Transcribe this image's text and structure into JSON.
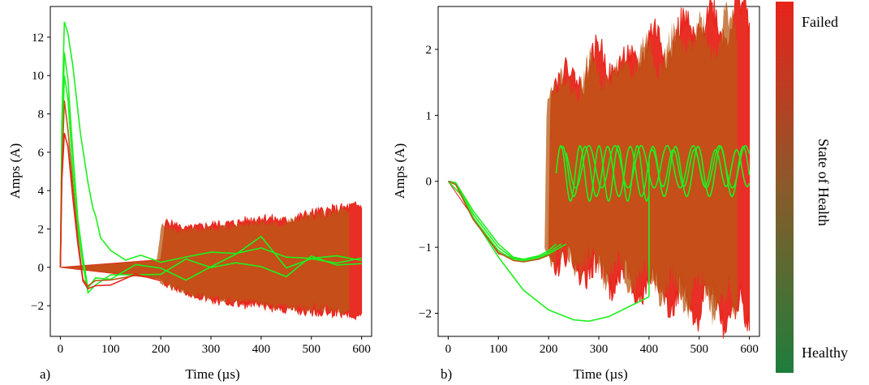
{
  "figure": {
    "colorbar": {
      "title": "State of Health",
      "top_label": "Failed",
      "bottom_label": "Healthy",
      "colors": {
        "failed": "#e8231a",
        "healthy": "#1e7d3c"
      }
    }
  },
  "chart_data": [
    {
      "type": "line",
      "panel_label": "a)",
      "xlabel": "Time (µs)",
      "ylabel": "Amps (A)",
      "xlim": [
        -20,
        620
      ],
      "ylim": [
        -3.6,
        13.6
      ],
      "xticks": [
        "0",
        "100",
        "200",
        "300",
        "400",
        "500",
        "600"
      ],
      "yticks": [
        "−2",
        "0",
        "2",
        "4",
        "6",
        "8",
        "10",
        "12"
      ],
      "grid": false,
      "colors": {
        "failed": "#e8231a",
        "mid": "#b85a16",
        "healthy": "#1ef01e"
      },
      "envelope": {
        "name": "failed-band",
        "x": [
          0,
          200,
          210,
          250,
          300,
          350,
          400,
          450,
          500,
          550,
          600
        ],
        "upper": [
          0,
          0.4,
          2.4,
          2.0,
          2.2,
          2.3,
          2.6,
          2.4,
          2.8,
          3.0,
          3.2
        ],
        "lower": [
          0,
          -0.6,
          -0.9,
          -1.3,
          -1.7,
          -1.9,
          -2.0,
          -2.2,
          -2.3,
          -2.3,
          -2.5
        ]
      },
      "series": [
        {
          "color": "healthy",
          "x": [
            0,
            3,
            8,
            15,
            25,
            40,
            55,
            65,
            70,
            80,
            100,
            130,
            160,
            200,
            250,
            300,
            350,
            400,
            450,
            500,
            550,
            600
          ],
          "y": [
            0,
            7.5,
            12.8,
            12.2,
            10.5,
            7.0,
            4.5,
            3.2,
            2.5,
            1.6,
            0.8,
            0.5,
            0.4,
            0.3,
            0.6,
            0.8,
            0.5,
            0.9,
            0.6,
            0.4,
            0.5,
            0.6
          ]
        },
        {
          "color": "healthy",
          "x": [
            0,
            3,
            8,
            15,
            25,
            35,
            45,
            55,
            70,
            100,
            150,
            200,
            250,
            300,
            350,
            400,
            450,
            500,
            550,
            600
          ],
          "y": [
            0,
            6.0,
            11.2,
            9.8,
            6.0,
            2.5,
            0.5,
            -0.9,
            -0.6,
            -0.4,
            -0.1,
            0.1,
            -0.6,
            0.2,
            0.8,
            1.4,
            0.2,
            0.6,
            0.4,
            0.7
          ]
        },
        {
          "color": "healthy",
          "x": [
            0,
            3,
            8,
            15,
            25,
            35,
            45,
            55,
            70,
            100,
            150,
            200,
            250,
            300,
            350,
            400,
            450,
            500,
            550,
            600
          ],
          "y": [
            0,
            5.5,
            10.0,
            8.8,
            5.0,
            2.0,
            0.0,
            -1.1,
            -0.8,
            -0.5,
            -0.3,
            -0.2,
            0.3,
            -0.2,
            0.4,
            0.1,
            -0.3,
            0.5,
            -0.1,
            0.2
          ]
        },
        {
          "color": "mid",
          "x": [
            0,
            3,
            8,
            15,
            25,
            35,
            45,
            55,
            70,
            100,
            150,
            200
          ],
          "y": [
            0,
            5.0,
            8.7,
            7.2,
            4.2,
            1.5,
            -0.4,
            -1.2,
            -0.9,
            -0.6,
            -0.5,
            -0.4
          ]
        },
        {
          "color": "failed",
          "x": [
            0,
            3,
            8,
            15,
            25,
            35,
            45,
            55,
            70,
            100,
            150,
            200
          ],
          "y": [
            0,
            4.5,
            7.0,
            6.3,
            3.6,
            1.2,
            -0.6,
            -1.3,
            -1.0,
            -0.7,
            -0.6,
            -0.5
          ]
        }
      ]
    },
    {
      "type": "line",
      "panel_label": "b)",
      "xlabel": "Time (µs)",
      "ylabel": "Amps (A)",
      "xlim": [
        -20,
        620
      ],
      "ylim": [
        -2.35,
        2.65
      ],
      "xticks": [
        "0",
        "100",
        "200",
        "300",
        "400",
        "500",
        "600"
      ],
      "yticks": [
        "−2",
        "−1",
        "0",
        "1",
        "2"
      ],
      "grid": false,
      "colors": {
        "failed": "#e8231a",
        "mid": "#b85a16",
        "healthy": "#1ef01e"
      },
      "envelope": {
        "name": "failed-band",
        "x": [
          0,
          100,
          150,
          200,
          205,
          210,
          250,
          300,
          350,
          400,
          450,
          500,
          550,
          600
        ],
        "upper": [
          0,
          -1.1,
          -1.2,
          -1.1,
          1.6,
          1.7,
          1.5,
          1.9,
          1.7,
          2.1,
          2.1,
          2.4,
          2.4,
          2.6
        ],
        "lower": [
          0,
          -1.1,
          -1.2,
          -1.1,
          -1.2,
          -1.2,
          -1.3,
          -1.4,
          -1.5,
          -1.6,
          -1.8,
          -1.8,
          -2.0,
          -2.1
        ]
      },
      "series": [
        {
          "color": "healthy",
          "x": [
            0,
            25,
            50,
            100,
            150,
            200,
            250,
            280,
            320,
            360,
            400
          ],
          "y": [
            0,
            -0.2,
            -0.55,
            -1.15,
            -1.65,
            -1.95,
            -2.1,
            -2.12,
            -2.05,
            -1.9,
            -1.75
          ]
        },
        {
          "color": "healthy",
          "x": [
            0,
            15,
            50,
            100,
            130,
            150,
            180,
            200,
            215
          ],
          "y": [
            0,
            -0.02,
            -0.45,
            -0.95,
            -1.15,
            -1.18,
            -1.13,
            -1.05,
            -0.95
          ]
        },
        {
          "color": "healthy",
          "x": [
            0,
            15,
            50,
            100,
            130,
            150,
            180,
            200,
            225
          ],
          "y": [
            0,
            -0.03,
            -0.5,
            -1.0,
            -1.17,
            -1.2,
            -1.15,
            -1.08,
            -0.95
          ]
        },
        {
          "color": "healthy",
          "x": [
            0,
            15,
            50,
            100,
            130,
            150,
            180,
            200,
            235
          ],
          "y": [
            0,
            -0.04,
            -0.55,
            -1.05,
            -1.19,
            -1.22,
            -1.17,
            -1.1,
            -0.95
          ]
        },
        {
          "color": "mid",
          "x": [
            0,
            15,
            50,
            100,
            130,
            150,
            180,
            200
          ],
          "y": [
            0,
            -0.05,
            -0.58,
            -1.08,
            -1.2,
            -1.22,
            -1.18,
            -1.12
          ]
        }
      ],
      "oscillations": [
        {
          "color": "healthy",
          "start": 215,
          "end": 400,
          "center": 0.12,
          "amplitude": 0.42,
          "period_us": 38,
          "phase": 0.0
        },
        {
          "color": "healthy",
          "start": 225,
          "end": 600,
          "center": 0.15,
          "amplitude": 0.38,
          "period_us": 45,
          "phase": 1.2
        },
        {
          "color": "healthy",
          "start": 235,
          "end": 600,
          "center": 0.22,
          "amplitude": 0.32,
          "period_us": 52,
          "phase": 2.4
        },
        {
          "color": "healthy",
          "start": 400,
          "end": 600,
          "center": 0.2,
          "amplitude": 0.28,
          "period_us": 42,
          "phase": 0.6
        }
      ]
    }
  ]
}
